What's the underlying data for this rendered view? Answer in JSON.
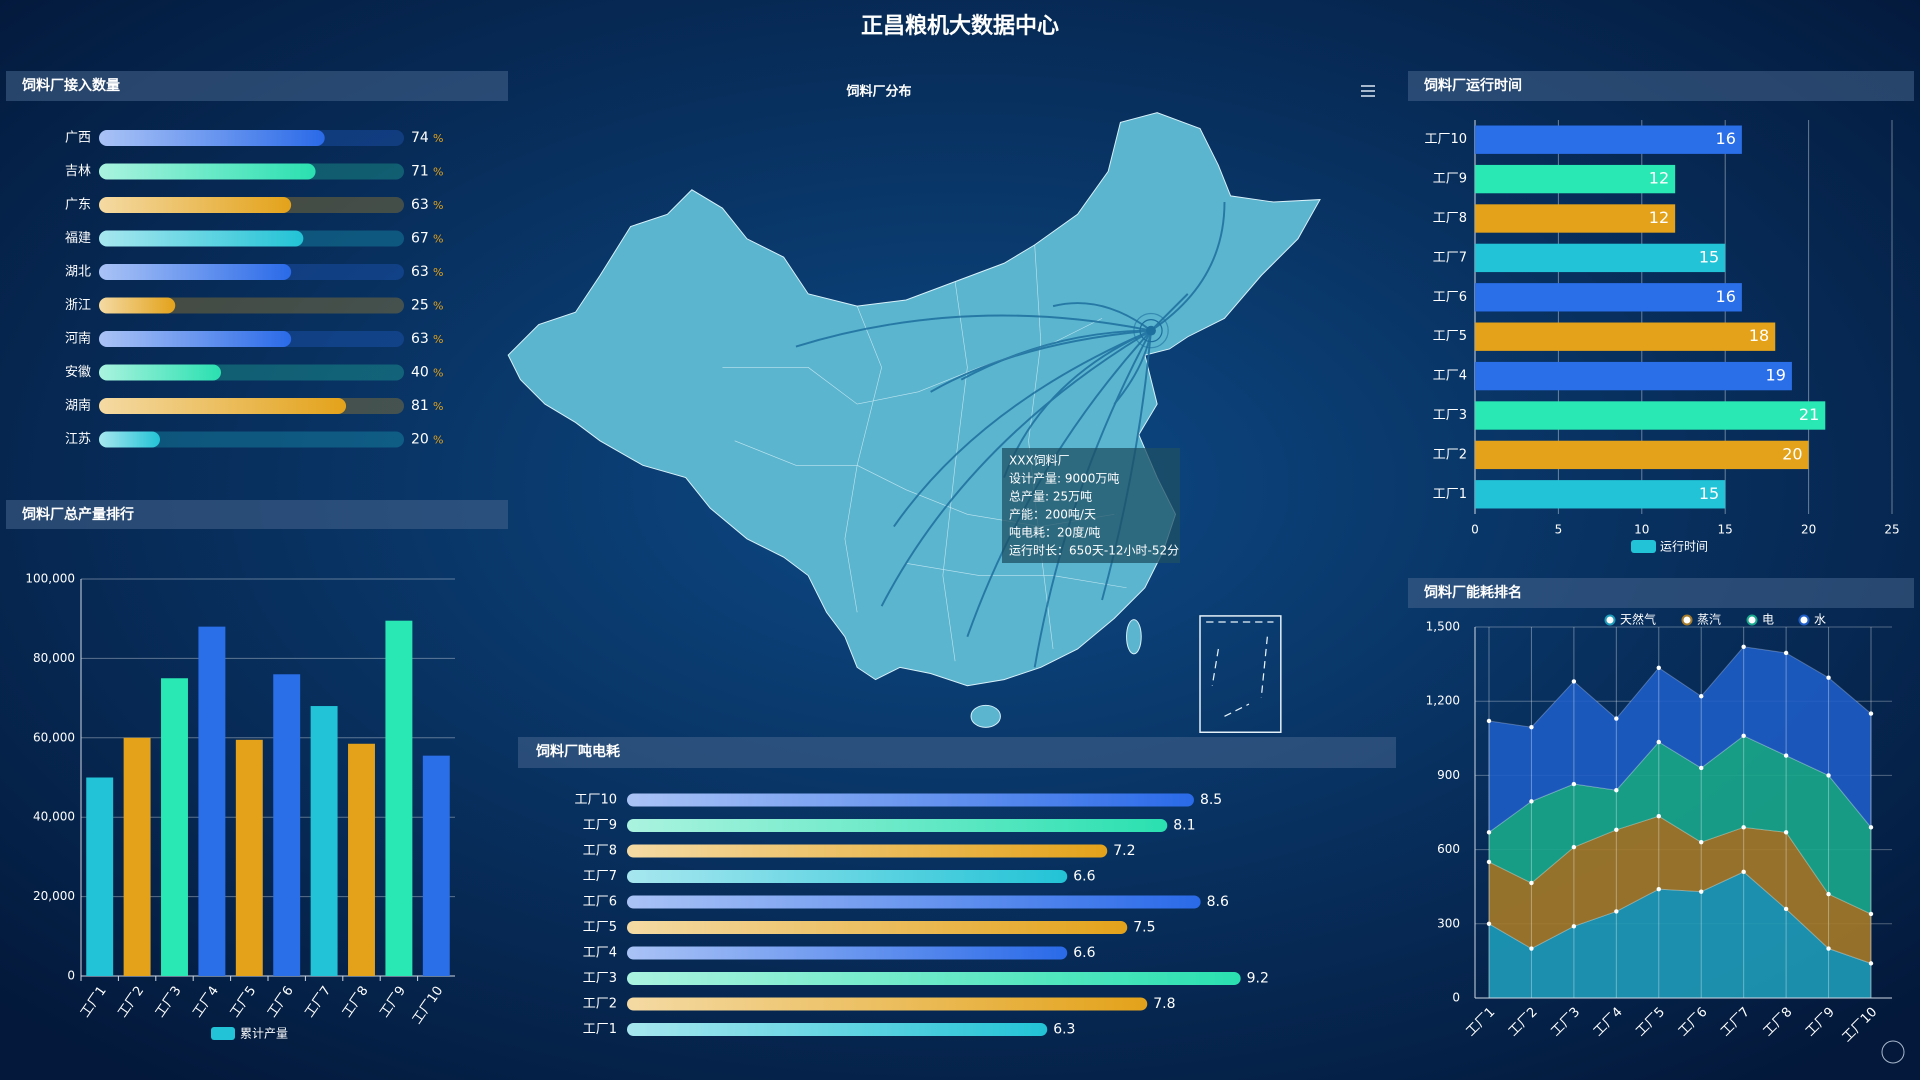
{
  "header": {
    "title": "正昌粮机大数据中心"
  },
  "map": {
    "title": "饲料厂分布",
    "tooltip": [
      "XXX饲料厂",
      "设计产量: 9000万吨",
      "总产量: 25万吨",
      "产能：200吨/天",
      "吨电耗：20度/吨",
      "运行时长：650天-12小时-52分"
    ]
  },
  "chart_data": [
    {
      "type": "progress",
      "title": "饲料厂接入数量",
      "categories": [
        "广西",
        "吉林",
        "广东",
        "福建",
        "湖北",
        "浙江",
        "河南",
        "安徽",
        "湖南",
        "江苏"
      ],
      "values": [
        74,
        71,
        63,
        67,
        63,
        25,
        63,
        40,
        81,
        20
      ],
      "unit": "%",
      "xlim": [
        0,
        100
      ],
      "colors": [
        "#2a6ae8",
        "#2ae0b0",
        "#e3a21a",
        "#22c3d6",
        "#2a6ae8",
        "#e3a21a",
        "#2a6ae8",
        "#2ae0b0",
        "#e3a21a",
        "#22c3d6"
      ]
    },
    {
      "type": "bar",
      "title": "饲料厂总产量排行",
      "categories": [
        "工厂1",
        "工厂2",
        "工厂3",
        "工厂4",
        "工厂5",
        "工厂6",
        "工厂7",
        "工厂8",
        "工厂9",
        "工厂10"
      ],
      "series": [
        {
          "name": "累计产量",
          "color": "#22c3d6",
          "values": [
            50000,
            60000,
            75000,
            88000,
            59500,
            76000,
            68000,
            58500,
            89500,
            55500
          ],
          "colors": [
            "#22c3d6",
            "#e3a21a",
            "#2ae8b4",
            "#2a6ee8",
            "#e3a21a",
            "#2a6ee8",
            "#22c3d6",
            "#e3a21a",
            "#2ae8b4",
            "#2a6ee8"
          ]
        }
      ],
      "ylim": [
        0,
        100000
      ],
      "yticks": [
        0,
        {
          "value": 20000,
          "label": "20,000"
        },
        {
          "value": 40000,
          "label": "40,000"
        },
        {
          "value": 60000,
          "label": "60,000"
        },
        {
          "value": 80000,
          "label": "80,000"
        },
        {
          "value": 100000,
          "label": "100,000"
        }
      ],
      "grid": true
    },
    {
      "type": "gradient-bar",
      "title": "饲料厂吨电耗",
      "categories": [
        "工厂10",
        "工厂9",
        "工厂8",
        "工厂7",
        "工厂6",
        "工厂5",
        "工厂4",
        "工厂3",
        "工厂2",
        "工厂1"
      ],
      "values": [
        8.5,
        8.1,
        7.2,
        6.6,
        8.6,
        7.5,
        6.6,
        9.2,
        7.8,
        6.3
      ],
      "colors": [
        "#2a6ae8",
        "#2ae0b0",
        "#e3a21a",
        "#22c3d6",
        "#2a6ae8",
        "#e3a21a",
        "#2a6ae8",
        "#2ae0b0",
        "#e3a21a",
        "#22c3d6"
      ]
    },
    {
      "type": "hbar",
      "title": "饲料厂运行时间",
      "categories": [
        "工厂1",
        "工厂2",
        "工厂3",
        "工厂4",
        "工厂5",
        "工厂6",
        "工厂7",
        "工厂8",
        "工厂9",
        "工厂10"
      ],
      "series": [
        {
          "name": "运行时间",
          "color": "#22c3d6",
          "values": [
            15,
            20,
            21,
            19,
            18,
            16,
            15,
            12,
            12,
            16
          ],
          "colors": [
            "#22c3d6",
            "#e3a21a",
            "#2ae8b4",
            "#2a6ee8",
            "#e3a21a",
            "#2a6ee8",
            "#22c3d6",
            "#e3a21a",
            "#2ae8b4",
            "#2a6ee8"
          ]
        }
      ],
      "xlim": [
        0,
        25
      ],
      "xticks": [
        0,
        5,
        10,
        15,
        20,
        25
      ],
      "grid": true
    },
    {
      "type": "stacked-area",
      "title": "饲料厂能耗排名",
      "categories": [
        "工厂1",
        "工厂2",
        "工厂3",
        "工厂4",
        "工厂5",
        "工厂6",
        "工厂7",
        "工厂8",
        "工厂9",
        "工厂10"
      ],
      "series": [
        {
          "name": "天然气",
          "color": "#1e9bb8",
          "values": [
            300,
            200,
            290,
            350,
            440,
            430,
            510,
            360,
            200,
            140
          ]
        },
        {
          "name": "蒸汽",
          "color": "#a57a28",
          "values": [
            250,
            265,
            320,
            330,
            295,
            200,
            180,
            310,
            220,
            200
          ]
        },
        {
          "name": "电",
          "color": "#1aa88c",
          "values": [
            120,
            330,
            255,
            160,
            300,
            300,
            370,
            310,
            480,
            350
          ]
        },
        {
          "name": "水",
          "color": "#1e5dc6",
          "values": [
            450,
            300,
            415,
            290,
            300,
            290,
            360,
            415,
            395,
            460
          ]
        }
      ],
      "ylim": [
        0,
        1500
      ],
      "yticks": [
        0,
        300,
        600,
        900,
        {
          "value": 1200,
          "label": "1,200"
        },
        {
          "value": 1500,
          "label": "1,500"
        }
      ],
      "grid": true
    }
  ]
}
